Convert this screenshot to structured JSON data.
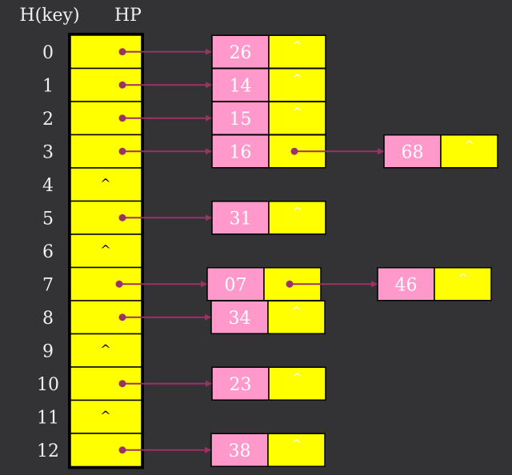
{
  "header": {
    "key_label": "H(key)",
    "table_label": "HP"
  },
  "null_symbol": "^",
  "colors": {
    "background": "#333336",
    "slot_fill": "#ffff00",
    "node_key_fill": "#ff99cc",
    "arrow": "#993366",
    "text_light": "#ffffff",
    "label_text": "#f0f0f0"
  },
  "buckets": [
    {
      "index": "0",
      "chain": [
        "26"
      ]
    },
    {
      "index": "1",
      "chain": [
        "14"
      ]
    },
    {
      "index": "2",
      "chain": [
        "15"
      ]
    },
    {
      "index": "3",
      "chain": [
        "16",
        "68"
      ]
    },
    {
      "index": "4",
      "chain": []
    },
    {
      "index": "5",
      "chain": [
        "31"
      ]
    },
    {
      "index": "6",
      "chain": []
    },
    {
      "index": "7",
      "chain": [
        "07",
        "46"
      ]
    },
    {
      "index": "8",
      "chain": [
        "34"
      ]
    },
    {
      "index": "9",
      "chain": []
    },
    {
      "index": "10",
      "chain": [
        "23"
      ]
    },
    {
      "index": "11",
      "chain": []
    },
    {
      "index": "12",
      "chain": [
        "38"
      ]
    }
  ]
}
